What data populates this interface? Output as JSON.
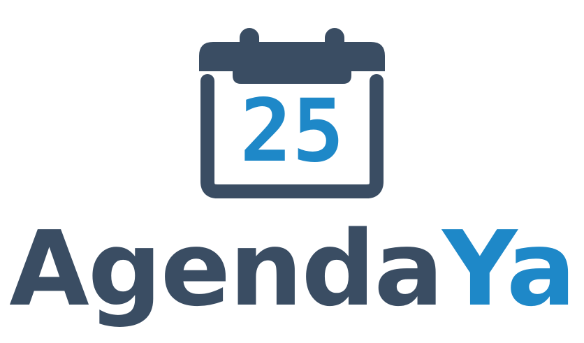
{
  "logo": {
    "calendar_day": "25",
    "wordmark_part_1": "Agenda",
    "wordmark_part_2": "Ya",
    "colors": {
      "dark": "#3a4d63",
      "accent": "#1e88c8",
      "background": "#ffffff"
    }
  }
}
